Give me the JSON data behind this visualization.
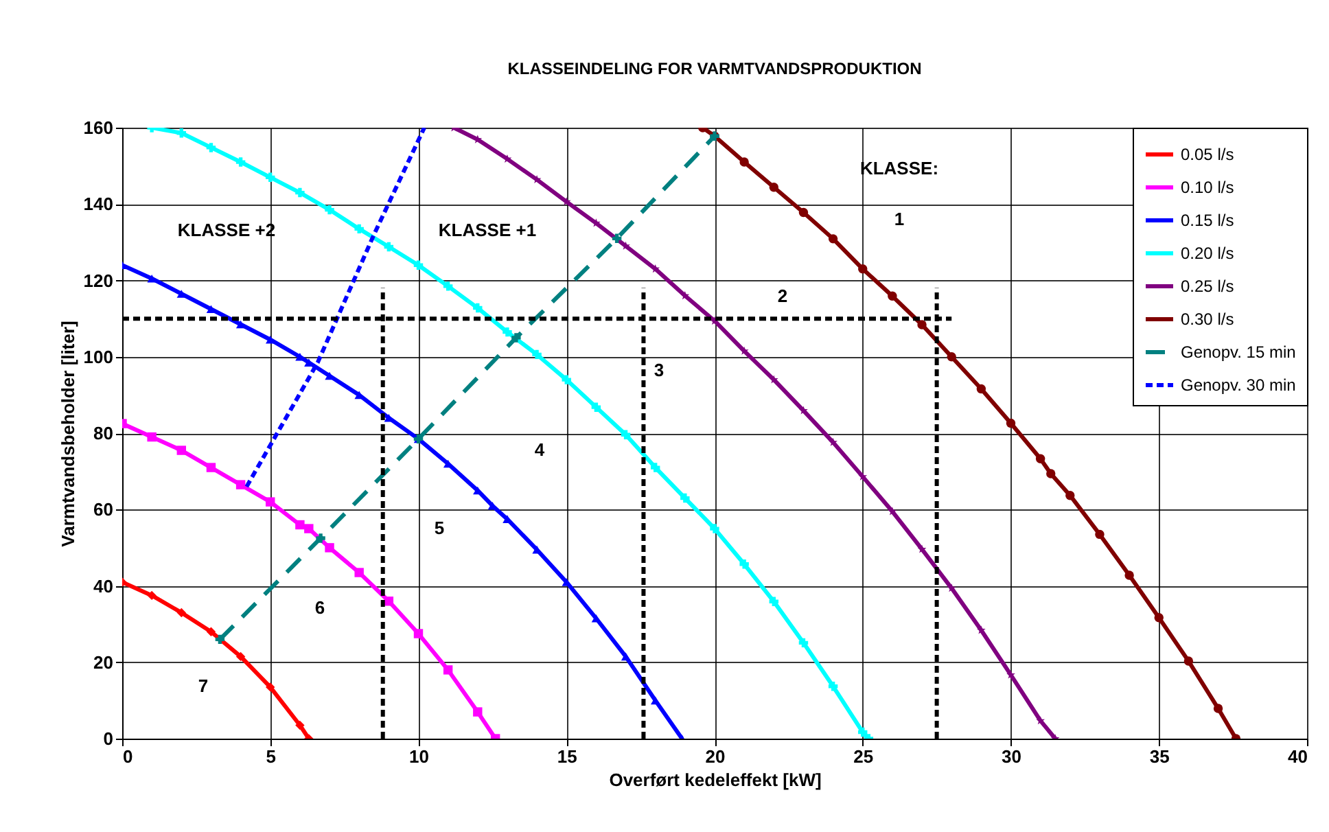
{
  "chart_data": {
    "type": "line",
    "title": "KLASSEINDELING FOR  VARMTVANDSPRODUKTION",
    "xlabel": "Overført kedeleffekt [kW]",
    "ylabel": "Varmtvandsbeholder [liter]",
    "xlim": [
      0,
      40
    ],
    "xticks": [
      0,
      5,
      10,
      15,
      20,
      25,
      30,
      35,
      40
    ],
    "ylim": [
      0,
      160
    ],
    "yticks": [
      0,
      20,
      40,
      60,
      80,
      100,
      120,
      140,
      160
    ],
    "grid": true,
    "legend": "top right",
    "series": [
      {
        "name": "0.05 l/s",
        "color": "#ff0000",
        "marker": "diamond",
        "line_style": "solid",
        "x": [
          0,
          1,
          2,
          3,
          4,
          5,
          6,
          6.3
        ],
        "values": [
          41,
          37.5,
          33,
          28,
          21.5,
          13.5,
          3.5,
          0
        ]
      },
      {
        "name": "0.10 l/s",
        "color": "#ff00ff",
        "marker": "square",
        "line_style": "solid",
        "x": [
          0,
          1,
          2,
          3,
          4,
          5,
          6,
          6.3,
          7,
          8,
          9,
          10,
          11,
          12,
          12.6
        ],
        "values": [
          82.5,
          79,
          75.5,
          71,
          66.5,
          62,
          56,
          55,
          50,
          43.5,
          36,
          27.5,
          18,
          7,
          0
        ]
      },
      {
        "name": "0.15 l/s",
        "color": "#0000ff",
        "marker": "triangle",
        "line_style": "solid",
        "x": [
          0,
          1,
          2,
          3,
          4,
          5,
          6,
          6.3,
          7,
          8,
          9,
          10,
          11,
          12,
          12.5,
          13,
          14,
          15,
          16,
          17,
          18,
          18.9
        ],
        "values": [
          124,
          120.5,
          116.5,
          112.5,
          108.5,
          104.5,
          100,
          98.5,
          95,
          90,
          84,
          78.5,
          72,
          65,
          61,
          57.5,
          49.5,
          41,
          31.5,
          21.5,
          10,
          0
        ]
      },
      {
        "name": "0.20 l/s",
        "color": "#00ffff",
        "marker": "cross",
        "line_style": "solid",
        "x": [
          1,
          2,
          3,
          4,
          5,
          6,
          7,
          8,
          9,
          10,
          11,
          12,
          13,
          14,
          15,
          16,
          17,
          18,
          19,
          20,
          21,
          22,
          23,
          24,
          25,
          25.2
        ],
        "values": [
          160,
          158.6,
          154.8,
          151,
          147,
          143,
          138.5,
          133.5,
          128.8,
          124,
          118.5,
          112.8,
          106.5,
          100.6,
          94,
          86.8,
          79.6,
          71,
          63,
          55,
          45.7,
          35.9,
          25.1,
          13.7,
          1.7,
          0
        ]
      },
      {
        "name": "0.25 l/s",
        "color": "#800080",
        "marker": "star",
        "line_style": "solid",
        "x": [
          11.2,
          12,
          13,
          14,
          15,
          16,
          17,
          18,
          19,
          20,
          21,
          22,
          23,
          24,
          25,
          26,
          27,
          28,
          29,
          30,
          31,
          31.5
        ],
        "values": [
          160,
          156.9,
          151.8,
          146.4,
          140.6,
          135,
          129,
          123,
          116,
          109.4,
          101.5,
          94,
          85.9,
          77.6,
          68.6,
          59.5,
          49.6,
          39.4,
          28.4,
          16.7,
          4.7,
          0
        ]
      },
      {
        "name": "0.30 l/s",
        "color": "#800000",
        "marker": "circle",
        "line_style": "solid",
        "x": [
          19.6,
          20,
          21,
          22,
          23,
          24,
          25,
          26,
          27,
          28,
          29,
          30,
          31,
          31.35,
          32,
          33,
          34,
          35,
          36,
          37,
          37.6
        ],
        "values": [
          160,
          157.8,
          151,
          144.4,
          137.8,
          130.9,
          123,
          115.9,
          108.4,
          100,
          91.6,
          82.6,
          73.3,
          69.4,
          63.7,
          53.5,
          42.8,
          31.7,
          20.3,
          7.9,
          0
        ]
      },
      {
        "name": "Genopv. 15 min",
        "color": "#008080",
        "marker": "cross",
        "line_style": "longdash",
        "x": [
          3.3,
          6.7,
          10,
          13.3,
          16.7,
          20
        ],
        "values": [
          26,
          52.5,
          78.5,
          105,
          131,
          157.8
        ]
      },
      {
        "name": "Genopv. 30 min",
        "color": "#0000ff",
        "marker": "none",
        "line_style": "dashed",
        "x": [
          4.2,
          6.6,
          8.5,
          10.2
        ],
        "values": [
          66,
          98.5,
          132,
          160
        ]
      },
      {
        "color": "#000000",
        "marker": "none",
        "line_style": "dashed",
        "x": [
          0,
          28
        ],
        "values": [
          110,
          110
        ]
      },
      {
        "color": "#000000",
        "marker": "none",
        "line_style": "dashed",
        "x": [
          8.8,
          8.8
        ],
        "values": [
          0,
          118
        ]
      },
      {
        "color": "#000000",
        "marker": "none",
        "line_style": "dashed",
        "x": [
          17.6,
          17.6
        ],
        "values": [
          0,
          118
        ]
      },
      {
        "color": "#000000",
        "marker": "none",
        "line_style": "dashed",
        "x": [
          27.5,
          27.5
        ],
        "values": [
          0,
          118
        ]
      }
    ],
    "annotations": [
      "KLASSE +2",
      "KLASSE +1",
      "KLASSE:",
      "1",
      "2",
      "3",
      "4",
      "5",
      "6",
      "7"
    ]
  }
}
